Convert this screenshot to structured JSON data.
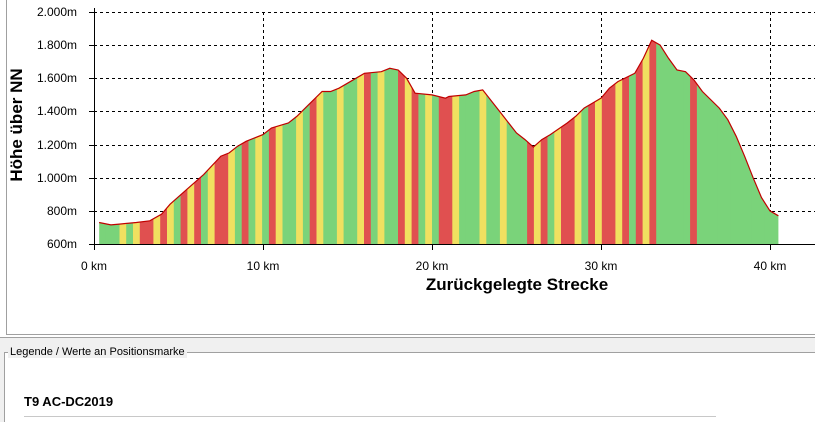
{
  "chart_data": {
    "type": "area",
    "title": "",
    "xlabel": "Zurückgelegte Strecke",
    "ylabel": "Höhe über NN",
    "xlim": [
      0,
      42
    ],
    "ylim": [
      600,
      2000
    ],
    "x_ticks": [
      0,
      10,
      20,
      30,
      40
    ],
    "x_tick_labels": [
      "0 km",
      "10 km",
      "20 km",
      "30 km",
      "40 km"
    ],
    "y_ticks": [
      600,
      800,
      1000,
      1200,
      1400,
      1600,
      1800,
      2000
    ],
    "y_tick_labels": [
      "600m",
      "800m",
      "1.000m",
      "1.200m",
      "1.400m",
      "1.600m",
      "1.800m",
      "2.000m"
    ],
    "grid": true,
    "series": [
      {
        "x": [
          0.3,
          1.0,
          1.5,
          2.5,
          3.3,
          4.0,
          4.5,
          5.5,
          6.5,
          7.5,
          8.0,
          8.5,
          9.0,
          10.0,
          10.5,
          11.5,
          12.0,
          12.8,
          13.5,
          14.0,
          14.5,
          15.5,
          16.0,
          17.0,
          17.5,
          18.0,
          18.5,
          19.0,
          20.0,
          20.8,
          21.0,
          22.0,
          22.5,
          23.0,
          24.0,
          25.0,
          25.5,
          26.0,
          26.5,
          27.0,
          28.0,
          28.5,
          29.0,
          30.0,
          30.5,
          31.0,
          32.0,
          32.5,
          33.0,
          33.5,
          34.0,
          34.5,
          35.0,
          35.5,
          36.0,
          37.0,
          37.5,
          38.0,
          38.5,
          39.0,
          39.5,
          40.0,
          40.5
        ],
        "values": [
          730,
          715,
          720,
          730,
          740,
          780,
          840,
          930,
          1020,
          1130,
          1150,
          1190,
          1220,
          1260,
          1300,
          1330,
          1370,
          1450,
          1520,
          1520,
          1540,
          1600,
          1630,
          1640,
          1660,
          1650,
          1600,
          1510,
          1500,
          1480,
          1490,
          1500,
          1520,
          1530,
          1400,
          1270,
          1230,
          1185,
          1230,
          1260,
          1330,
          1370,
          1420,
          1480,
          1540,
          1580,
          1630,
          1720,
          1830,
          1800,
          1720,
          1650,
          1640,
          1590,
          1520,
          1420,
          1350,
          1250,
          1130,
          1000,
          880,
          800,
          770
        ]
      }
    ],
    "gradient_colors": [
      "#e05050",
      "#f0e060",
      "#7ad37a"
    ]
  },
  "legend": {
    "caption": "Legende / Werte an Positionsmarke",
    "track_name": "T9 AC-DC2019"
  }
}
